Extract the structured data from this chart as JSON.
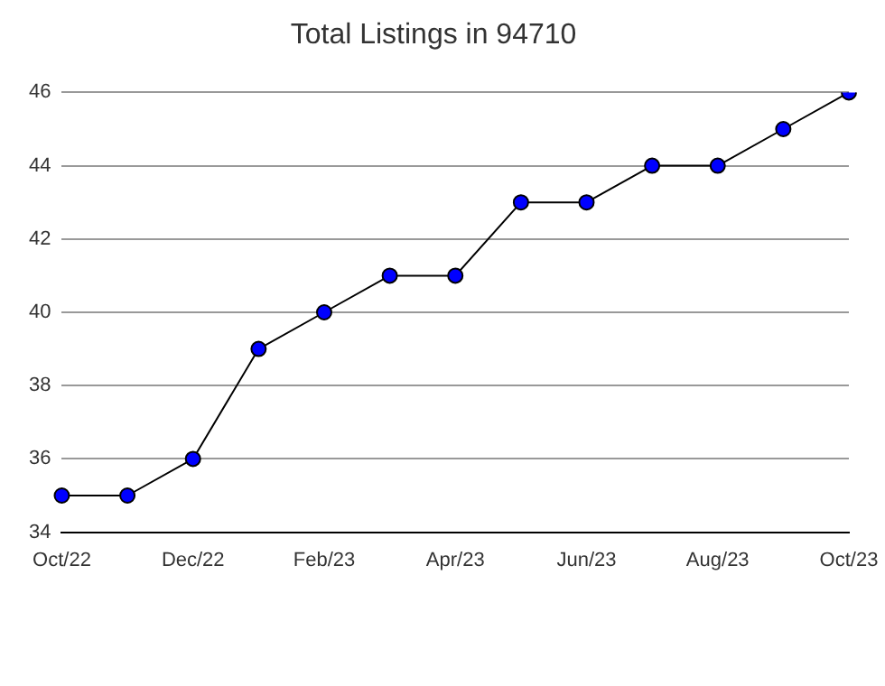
{
  "chart_data": {
    "type": "line",
    "title": "Total Listings in 94710",
    "categories": [
      "Oct/22",
      null,
      "Dec/22",
      null,
      "Feb/23",
      null,
      "Apr/23",
      null,
      "Jun/23",
      null,
      "Aug/23",
      null,
      "Oct/23"
    ],
    "series": [
      {
        "color": "#0000ff",
        "values": [
          35,
          35,
          36,
          39,
          40,
          41,
          41,
          43,
          43,
          44,
          44,
          45,
          46
        ]
      }
    ],
    "ylim": [
      34,
      46
    ],
    "yticks": [
      34,
      36,
      38,
      40,
      42,
      44,
      46
    ],
    "grid": "y",
    "legend": false,
    "marker": "circle",
    "line_style": "solid"
  }
}
